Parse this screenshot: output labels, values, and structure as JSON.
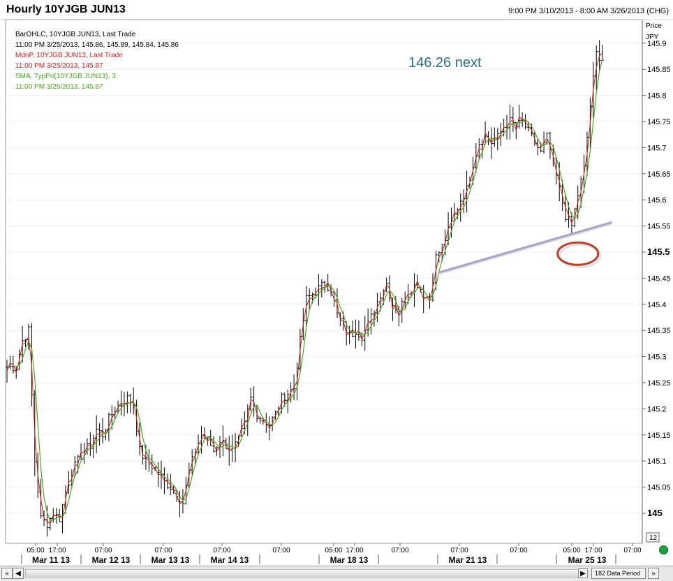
{
  "header": {
    "title": "Hourly 10YJGB JUN13",
    "date_range": "9:00 PM 3/10/2013 - 8:00 AM 3/26/2013 (CHG)"
  },
  "legend": [
    {
      "text": "BarOHLC, 10YJGB JUN13, Last Trade",
      "color": "#000000"
    },
    {
      "text": "11:00 PM 3/25/2013, 145.86, 145.89, 145.84, 145.86",
      "color": "#000000"
    },
    {
      "text": "MdnP, 10YJGB JUN13, Last Trade",
      "color": "#d41a1a"
    },
    {
      "text": "11:00 PM 3/25/2013, 145.87",
      "color": "#d41a1a"
    },
    {
      "text": "SMA, TypPri(10YJGB JUN13),  3",
      "color": "#4aa81a"
    },
    {
      "text": "11:00 PM 3/25/2013, 145.87",
      "color": "#4aa81a"
    }
  ],
  "annotation_text": "146.26 next",
  "axis": {
    "unit_label": "Price",
    "currency_label": "JPY",
    "corner_label": "12",
    "price_ticks": [
      "145.9",
      "145.85",
      "145.8",
      "145.75",
      "145.7",
      "145.65",
      "145.6",
      "145.55",
      "145.5",
      "145.45",
      "145.4",
      "145.35",
      "145.3",
      "145.25",
      "145.2",
      "145.15",
      "145.1",
      "145.05",
      "145"
    ],
    "bold_ticks": [
      "145.5",
      "145"
    ],
    "time_labels": [
      "05:00",
      "17:00",
      "07:00",
      "07:00",
      "07:00",
      "07:00",
      "05:00",
      "17:00",
      "07:00",
      "07:00",
      "07:00",
      "05:00",
      "17:00",
      "07:00"
    ],
    "date_labels": [
      "Mar 11 13",
      "Mar 12 13",
      "Mar 13 13",
      "Mar 14 13",
      "Mar 18 13",
      "Mar 21 13",
      "Mar 25 13"
    ]
  },
  "scrollbar": {
    "left_button": "«",
    "right_button": "»",
    "data_periods": "182 Data Period"
  },
  "chart_data": {
    "type": "line",
    "title": "Hourly 10YJGB JUN13",
    "xlabel": "",
    "ylabel": "Price JPY",
    "ylim": [
      144.98,
      145.925
    ],
    "bar_count": 182,
    "series": [
      {
        "name": "BarOHLC, 10YJGB JUN13, Last Trade",
        "style": "ohlc-bars",
        "color": "#000000"
      },
      {
        "name": "MdnP, 10YJGB JUN13, Last Trade",
        "style": "line",
        "color": "#d41a1a"
      },
      {
        "name": "SMA, TypPri(10YJGB JUN13),  3",
        "style": "line",
        "color": "#4aa81a"
      }
    ],
    "close_path": [
      [
        0,
        145.28
      ],
      [
        3,
        145.28
      ],
      [
        5,
        145.33
      ],
      [
        7,
        145.35
      ],
      [
        9,
        145.1
      ],
      [
        11,
        144.99
      ],
      [
        13,
        144.98
      ],
      [
        15,
        145.0
      ],
      [
        17,
        144.99
      ],
      [
        19,
        145.04
      ],
      [
        21,
        145.08
      ],
      [
        23,
        145.1
      ],
      [
        25,
        145.12
      ],
      [
        27,
        145.13
      ],
      [
        29,
        145.16
      ],
      [
        31,
        145.15
      ],
      [
        33,
        145.18
      ],
      [
        35,
        145.2
      ],
      [
        37,
        145.21
      ],
      [
        39,
        145.22
      ],
      [
        41,
        145.21
      ],
      [
        43,
        145.12
      ],
      [
        45,
        145.1
      ],
      [
        47,
        145.09
      ],
      [
        49,
        145.08
      ],
      [
        51,
        145.06
      ],
      [
        53,
        145.05
      ],
      [
        55,
        145.04
      ],
      [
        57,
        145.02
      ],
      [
        59,
        145.08
      ],
      [
        61,
        145.12
      ],
      [
        63,
        145.15
      ],
      [
        65,
        145.14
      ],
      [
        67,
        145.12
      ],
      [
        69,
        145.14
      ],
      [
        71,
        145.13
      ],
      [
        73,
        145.12
      ],
      [
        75,
        145.14
      ],
      [
        77,
        145.17
      ],
      [
        79,
        145.22
      ],
      [
        81,
        145.19
      ],
      [
        83,
        145.18
      ],
      [
        85,
        145.17
      ],
      [
        87,
        145.19
      ],
      [
        89,
        145.22
      ],
      [
        91,
        145.23
      ],
      [
        93,
        145.24
      ],
      [
        95,
        145.33
      ],
      [
        97,
        145.41
      ],
      [
        99,
        145.42
      ],
      [
        101,
        145.43
      ],
      [
        103,
        145.44
      ],
      [
        105,
        145.43
      ],
      [
        107,
        145.38
      ],
      [
        109,
        145.36
      ],
      [
        111,
        145.34
      ],
      [
        113,
        145.35
      ],
      [
        115,
        145.34
      ],
      [
        117,
        145.36
      ],
      [
        119,
        145.39
      ],
      [
        121,
        145.42
      ],
      [
        123,
        145.44
      ],
      [
        125,
        145.4
      ],
      [
        127,
        145.39
      ],
      [
        129,
        145.41
      ],
      [
        131,
        145.43
      ],
      [
        133,
        145.44
      ],
      [
        135,
        145.42
      ],
      [
        137,
        145.41
      ],
      [
        139,
        145.49
      ],
      [
        141,
        145.51
      ],
      [
        143,
        145.54
      ],
      [
        145,
        145.57
      ],
      [
        147,
        145.6
      ],
      [
        149,
        145.62
      ],
      [
        151,
        145.67
      ],
      [
        153,
        145.71
      ],
      [
        155,
        145.72
      ],
      [
        157,
        145.71
      ],
      [
        159,
        145.72
      ],
      [
        161,
        145.74
      ],
      [
        163,
        145.75
      ],
      [
        165,
        145.74
      ],
      [
        167,
        145.75
      ],
      [
        169,
        145.73
      ],
      [
        171,
        145.71
      ],
      [
        173,
        145.69
      ],
      [
        175,
        145.72
      ],
      [
        177,
        145.67
      ],
      [
        179,
        145.62
      ],
      [
        181,
        145.57
      ],
      [
        183,
        145.55
      ],
      [
        185,
        145.61
      ],
      [
        187,
        145.66
      ],
      [
        189,
        145.78
      ],
      [
        191,
        145.88
      ],
      [
        193,
        145.87
      ]
    ],
    "support_line": {
      "from": [
        140,
        145.461
      ],
      "to": [
        196,
        145.557
      ]
    },
    "highlight": {
      "x": 185,
      "y": 145.497
    }
  },
  "colors": {
    "bars": "#000000",
    "median_line": "#d41a1a",
    "sma_line": "#4aa81a",
    "trendline": "#a9a3cc",
    "highlight_ellipse": "#b5402e",
    "annotation": "#2c6f78",
    "grid": "#e0e0e0"
  }
}
